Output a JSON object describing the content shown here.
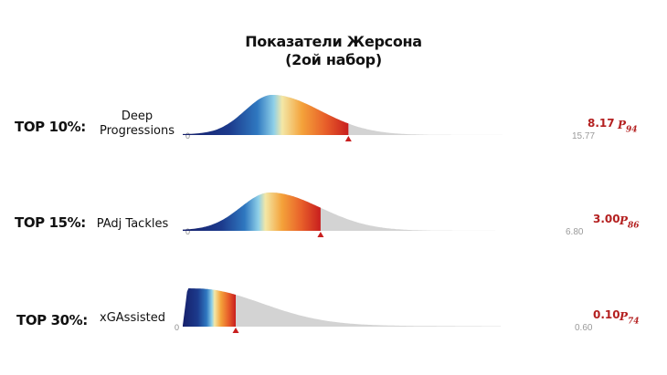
{
  "title_line1": "Показатели Жерсона",
  "title_line2": "(2ой набор)",
  "chart_data": [
    {
      "type": "area",
      "tier": "TOP 10%:",
      "metric": [
        "Deep",
        "Progressions"
      ],
      "axis_min_label": "0",
      "axis_max_label": "15.77",
      "value_label": "8.17",
      "percentile_letter": "P",
      "percentile": "94",
      "xlim": [
        0,
        15.77
      ],
      "value": 8.17
    },
    {
      "type": "area",
      "tier": "TOP 15%:",
      "metric": [
        "PAdj Tackles"
      ],
      "axis_min_label": "0",
      "axis_max_label": "6.80",
      "value_label": "3.00",
      "percentile_letter": "P",
      "percentile": "86",
      "xlim": [
        0,
        6.8
      ],
      "value": 3.0
    },
    {
      "type": "area",
      "tier": "TOP 30%:",
      "metric": [
        "xGAssisted"
      ],
      "axis_min_label": "0",
      "axis_max_label": "0.60",
      "value_label": "0.10",
      "percentile_letter": "P",
      "percentile": "74",
      "xlim": [
        0,
        0.6
      ],
      "value": 0.1
    }
  ]
}
